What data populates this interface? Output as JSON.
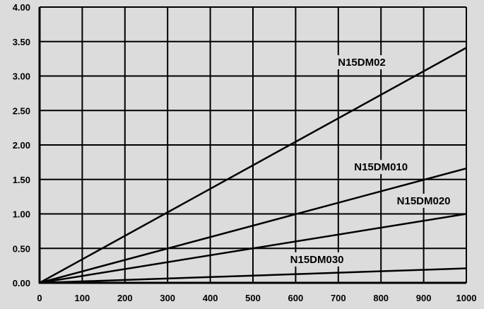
{
  "chart_data": {
    "type": "line",
    "title": "",
    "xlabel": "",
    "ylabel": "",
    "xlim": [
      0,
      1000
    ],
    "ylim": [
      0,
      4
    ],
    "grid": true,
    "x_ticks": [
      0,
      100,
      200,
      300,
      400,
      500,
      600,
      700,
      800,
      900,
      1000
    ],
    "y_ticks": [
      0,
      0.5,
      1.0,
      1.5,
      2.0,
      2.5,
      3.0,
      3.5,
      4.0
    ],
    "x_tick_labels": [
      "0",
      "100",
      "200",
      "300",
      "400",
      "500",
      "600",
      "700",
      "800",
      "900",
      "1000"
    ],
    "y_tick_labels": [
      "0.00",
      "0.50",
      "1.00",
      "1.50",
      "2.00",
      "2.50",
      "3.00",
      "3.50",
      "4.00"
    ],
    "series": [
      {
        "name": "N15DM02",
        "x": [
          0,
          1000
        ],
        "y": [
          0,
          3.41
        ]
      },
      {
        "name": "N15DM010",
        "x": [
          0,
          1000
        ],
        "y": [
          0,
          1.66
        ]
      },
      {
        "name": "N15DM020",
        "x": [
          0,
          1000
        ],
        "y": [
          0,
          1.0
        ]
      },
      {
        "name": "N15DM030",
        "x": [
          0,
          1000
        ],
        "y": [
          0,
          0.21
        ]
      }
    ],
    "annotations": [
      {
        "series": "N15DM02",
        "text": "N15DM02",
        "x": 755,
        "y": 3.2
      },
      {
        "series": "N15DM010",
        "text": "N15DM010",
        "x": 800,
        "y": 1.68
      },
      {
        "series": "N15DM020",
        "text": "N15DM020",
        "x": 900,
        "y": 1.19
      },
      {
        "series": "N15DM030",
        "text": "N15DM030",
        "x": 650,
        "y": 0.34
      }
    ]
  }
}
